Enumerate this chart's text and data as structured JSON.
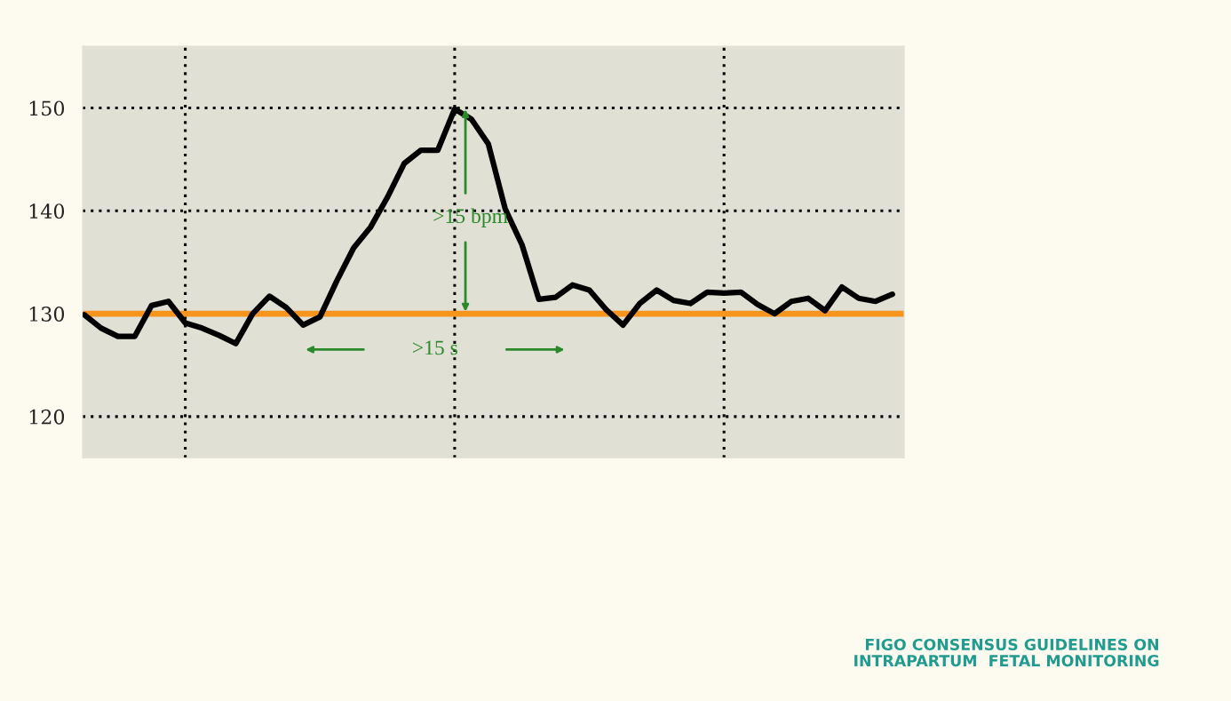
{
  "chart_data": {
    "type": "line",
    "categories": [
      null,
      null,
      null,
      null,
      null,
      null,
      null,
      null,
      null,
      null,
      null,
      null,
      null,
      null,
      null,
      null,
      null,
      null,
      null,
      null,
      null,
      null,
      null,
      null,
      null,
      null,
      null,
      null,
      null,
      null,
      null,
      null,
      null,
      null,
      null,
      null,
      null,
      null,
      null,
      null,
      null,
      null,
      null,
      null,
      null,
      null,
      null,
      null,
      null
    ],
    "series": [
      {
        "color": "#000000",
        "values": [
          129.9,
          128.6,
          127.8,
          127.8,
          130.8,
          131.2,
          129.1,
          128.6,
          127.9,
          127.1,
          130.0,
          131.7,
          130.6,
          128.9,
          129.7,
          133.2,
          136.4,
          138.4,
          141.3,
          144.6,
          145.9,
          145.9,
          149.9,
          148.9,
          146.5,
          140.2,
          136.7,
          131.4,
          131.6,
          132.8,
          132.3,
          130.4,
          128.9,
          131.0,
          132.3,
          131.3,
          131.0,
          132.1,
          132.0,
          132.1,
          130.9,
          130.0,
          131.2,
          131.5,
          130.3,
          132.6,
          131.5,
          131.2,
          131.9
        ]
      }
    ],
    "ylim": [
      116,
      156
    ],
    "yticks": [
      120,
      130,
      140,
      150
    ],
    "tick_labels": "y",
    "grid": true,
    "line_style": "solid",
    "marker": "none",
    "ref_lines": [
      {
        "axis": "y",
        "value": 130,
        "color": "#f7941d"
      }
    ],
    "annotations": [
      ">15 bpm",
      ">15 s",
      "FIGO CONSENSUS GUIDELINES ON\nINTRAPARTUM  FETAL MONITORING"
    ]
  }
}
